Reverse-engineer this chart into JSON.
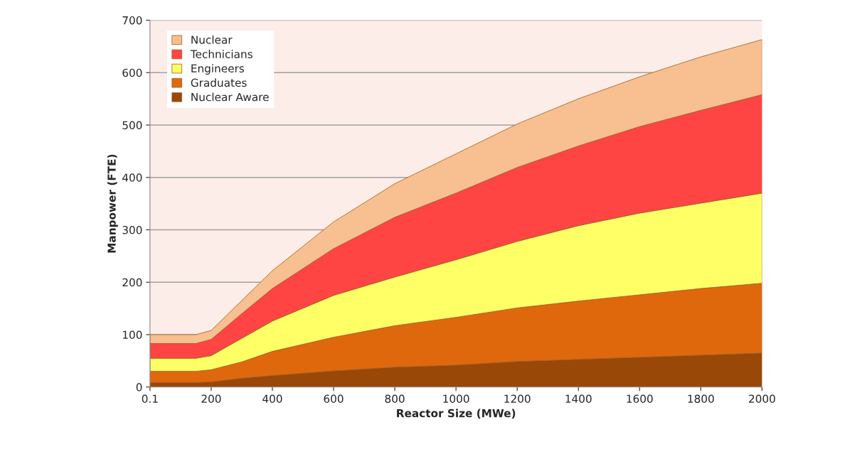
{
  "chart_data": {
    "type": "area",
    "stacked": true,
    "xlabel": "Reactor Size (MWe)",
    "ylabel": "Manpower (FTE)",
    "x": [
      0.1,
      150,
      200,
      300,
      400,
      600,
      800,
      1000,
      1200,
      1400,
      1600,
      1800,
      2000
    ],
    "series": [
      {
        "name": "Nuclear Aware",
        "color": "#994808",
        "values": [
          9,
          9,
          10,
          17,
          22,
          31,
          38,
          42,
          49,
          53,
          57,
          61,
          65
        ]
      },
      {
        "name": "Graduates",
        "color": "#e0680c",
        "values": [
          21,
          21,
          23,
          31,
          46,
          64,
          79,
          91,
          102,
          111,
          119,
          127,
          133
        ]
      },
      {
        "name": "Engineers",
        "color": "#ffff66",
        "values": [
          25,
          25,
          27,
          45,
          58,
          80,
          93,
          110,
          127,
          144,
          156,
          163,
          172
        ]
      },
      {
        "name": "Technicians",
        "color": "#ff4444",
        "values": [
          28,
          28,
          31,
          47,
          62,
          89,
          114,
          127,
          141,
          152,
          165,
          177,
          188
        ]
      },
      {
        "name": "Nuclear",
        "color": "#f8c090",
        "values": [
          17,
          17,
          17,
          25,
          34,
          51,
          64,
          75,
          83,
          90,
          95,
          102,
          105
        ]
      }
    ],
    "xlim": [
      0.1,
      2000
    ],
    "xticks": [
      0.1,
      200,
      400,
      600,
      800,
      1000,
      1200,
      1400,
      1600,
      1800,
      2000
    ],
    "ylim": [
      0,
      700
    ],
    "yticks": [
      0,
      100,
      200,
      300,
      400,
      500,
      600,
      700
    ],
    "grid": "y",
    "legend": "top left"
  }
}
